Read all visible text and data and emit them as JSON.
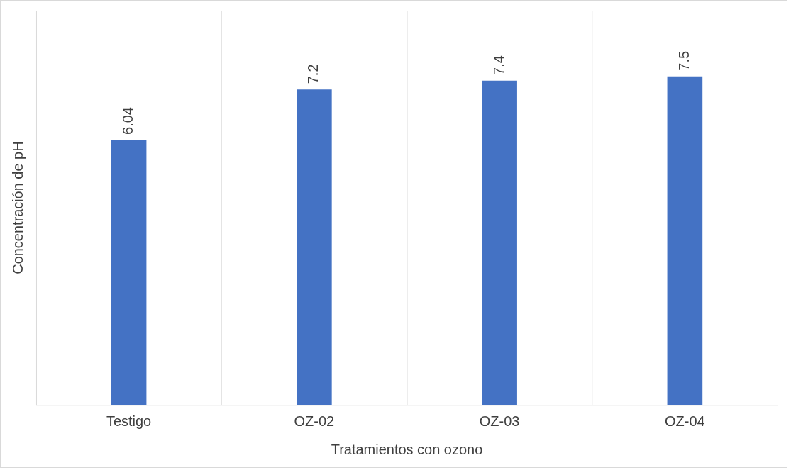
{
  "chart_data": {
    "type": "bar",
    "xlabel": "Tratamientos con ozono",
    "ylabel": "Concentración de pH",
    "categories": [
      "Testigo",
      "OZ-02",
      "OZ-03",
      "OZ-04"
    ],
    "values": [
      6.04,
      7.2,
      7.4,
      7.5
    ],
    "color": "#4472c4",
    "data_labels": true,
    "grid": "x",
    "legend": false
  }
}
